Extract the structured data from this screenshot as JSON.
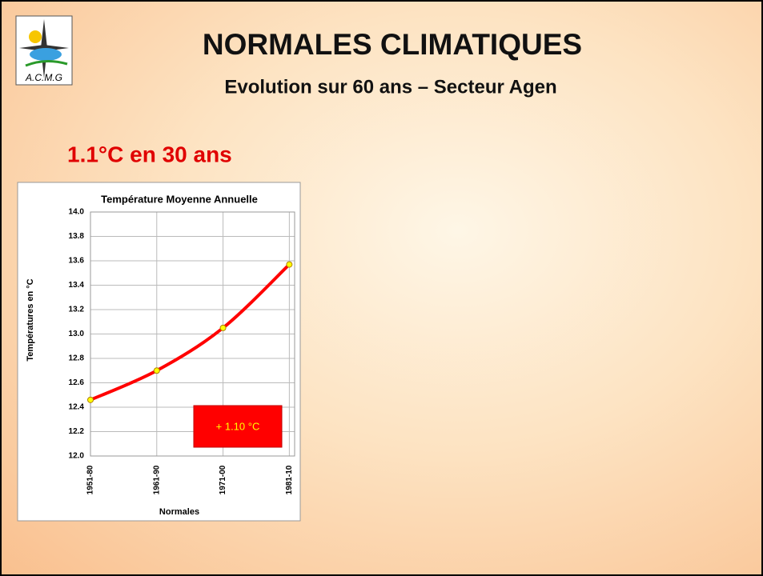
{
  "header": {
    "logo_text": "A.C.M.G",
    "title": "NORMALES CLIMATIQUES",
    "subtitle": "Evolution sur 60 ans – Secteur Agen",
    "heading": "1.1°C en 30 ans"
  },
  "chart_data": {
    "type": "line",
    "title": "Température Moyenne Annuelle",
    "x_label": "Normales",
    "y_label": "Températures en °C",
    "categories": [
      "1951-80",
      "1961-90",
      "1971-00",
      "1981-10"
    ],
    "series": [
      {
        "color": "#ff0000",
        "marker_color": "#ffff00",
        "values": [
          12.46,
          12.7,
          13.05,
          13.57
        ]
      }
    ],
    "ylim": [
      12.0,
      14.0
    ],
    "yticks": [
      {
        "value": 12.0,
        "label": "12.0"
      },
      {
        "value": 12.2,
        "label": "12.2"
      },
      {
        "value": 12.4,
        "label": "12.4"
      },
      {
        "value": 12.6,
        "label": "12.6"
      },
      {
        "value": 12.8,
        "label": "12.8"
      },
      {
        "value": 13.0,
        "label": "13.0"
      },
      {
        "value": 13.2,
        "label": "13.2"
      },
      {
        "value": 13.4,
        "label": "13.4"
      },
      {
        "value": 13.6,
        "label": "13.6"
      },
      {
        "value": 13.8,
        "label": "13.8"
      },
      {
        "value": 14.0,
        "label": "14.0"
      }
    ],
    "grid": true,
    "annotation": "+ 1.10 °C"
  }
}
